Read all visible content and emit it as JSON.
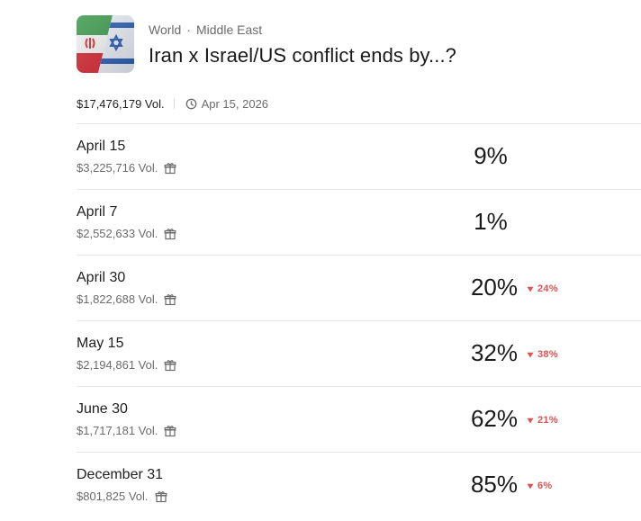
{
  "header": {
    "category": "World",
    "separator": "·",
    "subcategory": "Middle East",
    "title": "Iran x Israel/US conflict ends by...?"
  },
  "meta": {
    "volume": "$17,476,179 Vol.",
    "date": "Apr 15, 2026"
  },
  "outcomes": [
    {
      "label": "April 15",
      "volume": "$3,225,716 Vol.",
      "percent": "9%",
      "change": ""
    },
    {
      "label": "April 7",
      "volume": "$2,552,633 Vol.",
      "percent": "1%",
      "change": ""
    },
    {
      "label": "April 30",
      "volume": "$1,822,688 Vol.",
      "percent": "20%",
      "change": "24%"
    },
    {
      "label": "May 15",
      "volume": "$2,194,861 Vol.",
      "percent": "32%",
      "change": "38%"
    },
    {
      "label": "June 30",
      "volume": "$1,717,181 Vol.",
      "percent": "62%",
      "change": "21%"
    },
    {
      "label": "December 31",
      "volume": "$801,825 Vol.",
      "percent": "85%",
      "change": "6%"
    }
  ],
  "colors": {
    "down": "#e05252",
    "muted": "#6b6b6b",
    "divider": "#e6e6e6"
  },
  "icons": {
    "market": "iran-israel-flags-icon",
    "clock": "clock-icon",
    "gift": "gift-icon",
    "change": "triangle-down-icon"
  }
}
